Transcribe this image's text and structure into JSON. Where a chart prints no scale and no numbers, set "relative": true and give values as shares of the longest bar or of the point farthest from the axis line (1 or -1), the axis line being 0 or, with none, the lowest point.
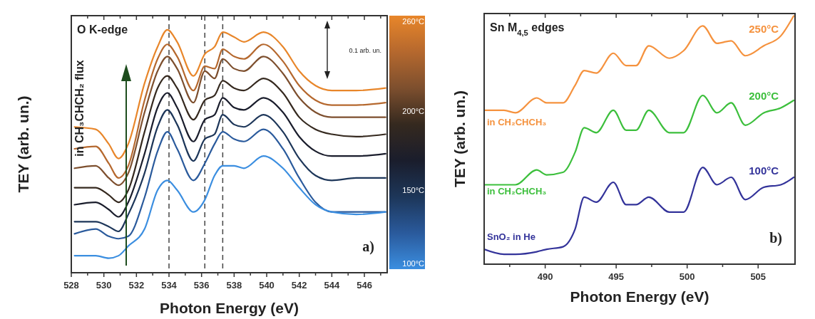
{
  "chart_data": [
    {
      "type": "line",
      "relative": true,
      "xlabel": "Photon Energy (eV)",
      "ylabel": "TEY (arb. un.)",
      "line_style": "solid",
      "xlim": [
        528,
        547.4
      ],
      "xticks": [
        528,
        {
          "value": 529,
          "label": null
        },
        530,
        {
          "value": 531,
          "label": null
        },
        532,
        {
          "value": 533,
          "label": null
        },
        534,
        {
          "value": 535,
          "label": null
        },
        536,
        {
          "value": 537,
          "label": null
        },
        538,
        {
          "value": 539,
          "label": null
        },
        540,
        {
          "value": 541,
          "label": null
        },
        542,
        {
          "value": 543,
          "label": null
        },
        544,
        {
          "value": 545,
          "label": null
        },
        546,
        {
          "value": 547,
          "label": null
        }
      ],
      "x": [
        528.2,
        529.5,
        530.3,
        530.9,
        531.5,
        532.5,
        533.3,
        533.9,
        534.5,
        535.5,
        536.2,
        536.8,
        537.3,
        538,
        538.6,
        539.8,
        541,
        542,
        543,
        544,
        545.5,
        547.3
      ],
      "series": [
        {
          "color": "#e8862a",
          "values": [
            0.6,
            0.59,
            0.53,
            0.47,
            0.53,
            0.78,
            0.93,
            1.0,
            0.95,
            0.81,
            0.9,
            0.93,
            0.99,
            0.97,
            0.95,
            0.99,
            0.93,
            0.83,
            0.77,
            0.75,
            0.75,
            0.76
          ]
        },
        {
          "color": "#b5682e",
          "values": [
            0.51,
            0.52,
            0.45,
            0.39,
            0.44,
            0.71,
            0.88,
            0.94,
            0.89,
            0.75,
            0.85,
            0.84,
            0.92,
            0.89,
            0.88,
            0.94,
            0.87,
            0.77,
            0.71,
            0.69,
            0.69,
            0.7
          ]
        },
        {
          "color": "#7d4f2e",
          "values": [
            0.43,
            0.44,
            0.39,
            0.36,
            0.41,
            0.66,
            0.83,
            0.89,
            0.84,
            0.7,
            0.83,
            0.8,
            0.88,
            0.84,
            0.83,
            0.89,
            0.82,
            0.72,
            0.66,
            0.64,
            0.64,
            0.64
          ]
        },
        {
          "color": "#35291f",
          "values": [
            0.35,
            0.35,
            0.32,
            0.29,
            0.34,
            0.58,
            0.76,
            0.81,
            0.76,
            0.63,
            0.71,
            0.73,
            0.79,
            0.76,
            0.75,
            0.8,
            0.74,
            0.64,
            0.59,
            0.57,
            0.56,
            0.57
          ]
        },
        {
          "color": "#1a1d2c",
          "values": [
            0.28,
            0.29,
            0.26,
            0.23,
            0.29,
            0.49,
            0.68,
            0.74,
            0.68,
            0.54,
            0.63,
            0.65,
            0.72,
            0.68,
            0.67,
            0.72,
            0.66,
            0.56,
            0.5,
            0.48,
            0.48,
            0.49
          ]
        },
        {
          "color": "#1d3659",
          "values": [
            0.21,
            0.21,
            0.19,
            0.17,
            0.24,
            0.41,
            0.6,
            0.67,
            0.61,
            0.46,
            0.55,
            0.57,
            0.65,
            0.61,
            0.6,
            0.65,
            0.58,
            0.47,
            0.4,
            0.38,
            0.39,
            0.39
          ]
        },
        {
          "color": "#2a5a9c",
          "values": [
            0.16,
            0.18,
            0.15,
            0.14,
            0.15,
            0.31,
            0.5,
            0.58,
            0.51,
            0.38,
            0.45,
            0.53,
            0.58,
            0.55,
            0.54,
            0.59,
            0.51,
            0.39,
            0.29,
            0.25,
            0.25,
            0.25
          ]
        },
        {
          "color": "#3b8ee0",
          "values": [
            0.07,
            0.07,
            0.06,
            0.07,
            0.11,
            0.18,
            0.34,
            0.38,
            0.34,
            0.25,
            0.3,
            0.4,
            0.44,
            0.44,
            0.43,
            0.48,
            0.43,
            0.35,
            0.28,
            0.25,
            0.24,
            0.25
          ]
        }
      ],
      "clim": [
        100,
        260
      ],
      "cticks": [
        {
          "value": 100,
          "label": "100°C"
        },
        {
          "value": 150,
          "label": "150°C"
        },
        {
          "value": 200,
          "label": "200°C"
        },
        {
          "value": 260,
          "label": "260°C"
        }
      ],
      "ref_lines": [
        {
          "axis": "x",
          "value": 534,
          "color": "#444444",
          "line_style": "dashed"
        },
        {
          "axis": "x",
          "value": 536.2,
          "color": "#444444",
          "line_style": "dashed"
        },
        {
          "axis": "x",
          "value": 537.3,
          "color": "#444444",
          "line_style": "dashed"
        }
      ],
      "annotations": [
        "O K-edge",
        "in CH₃CHCH₂ flux",
        "0.1 arb. un.",
        "a)"
      ]
    },
    {
      "type": "line",
      "relative": true,
      "xlabel": "Photon Energy (eV)",
      "ylabel": "TEY (arb. un.)",
      "line_style": "solid",
      "xlim": [
        485.7,
        507.6
      ],
      "xticks": [
        {
          "value": 487.5,
          "label": null
        },
        490,
        {
          "value": 492.5,
          "label": null
        },
        495,
        {
          "value": 497.5,
          "label": null
        },
        500,
        {
          "value": 502.5,
          "label": null
        },
        505
      ],
      "x": [
        485.7,
        487.1,
        487.9,
        489.4,
        490.1,
        491.25,
        492.1,
        492.75,
        493.6,
        494.8,
        495.7,
        496.4,
        497.3,
        498.75,
        499.75,
        501.1,
        502.1,
        503.1,
        504.1,
        505.4,
        506.6,
        507.5
      ],
      "series": [
        {
          "name": "250°C",
          "color": "#f5923e",
          "values": [
            0.62,
            0.62,
            0.61,
            0.67,
            0.65,
            0.65,
            0.72,
            0.78,
            0.77,
            0.85,
            0.8,
            0.8,
            0.88,
            0.83,
            0.86,
            0.96,
            0.89,
            0.9,
            0.84,
            0.88,
            0.92,
            1.0
          ]
        },
        {
          "name": "200°C",
          "color": "#3cbf3c",
          "values": [
            0.32,
            0.32,
            0.32,
            0.38,
            0.36,
            0.37,
            0.45,
            0.55,
            0.53,
            0.62,
            0.54,
            0.54,
            0.62,
            0.53,
            0.53,
            0.68,
            0.61,
            0.65,
            0.56,
            0.61,
            0.63,
            0.66
          ]
        },
        {
          "name": "100°C",
          "color": "#33339a",
          "values": [
            0.06,
            0.04,
            0.04,
            0.05,
            0.06,
            0.07,
            0.14,
            0.27,
            0.25,
            0.33,
            0.24,
            0.24,
            0.27,
            0.21,
            0.21,
            0.39,
            0.32,
            0.35,
            0.26,
            0.31,
            0.32,
            0.35
          ]
        }
      ],
      "annotations": [
        "Sn M$_{4,5}$ edges",
        "in CH₂CHCH₃",
        "in CH₂CHCH₃",
        "SnO₂ in He",
        "b)"
      ]
    }
  ]
}
